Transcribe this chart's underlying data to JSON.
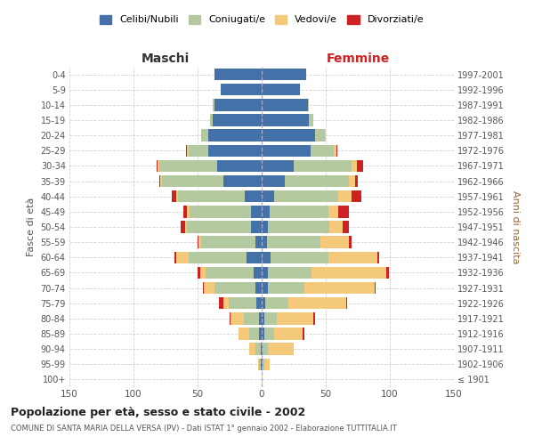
{
  "age_groups": [
    "100+",
    "95-99",
    "90-94",
    "85-89",
    "80-84",
    "75-79",
    "70-74",
    "65-69",
    "60-64",
    "55-59",
    "50-54",
    "45-49",
    "40-44",
    "35-39",
    "30-34",
    "25-29",
    "20-24",
    "15-19",
    "10-14",
    "5-9",
    "0-4"
  ],
  "birth_years": [
    "≤ 1901",
    "1902-1906",
    "1907-1911",
    "1912-1916",
    "1917-1921",
    "1922-1926",
    "1927-1931",
    "1932-1936",
    "1937-1941",
    "1942-1946",
    "1947-1951",
    "1952-1956",
    "1957-1961",
    "1962-1966",
    "1967-1971",
    "1972-1976",
    "1977-1981",
    "1982-1986",
    "1987-1991",
    "1992-1996",
    "1997-2001"
  ],
  "male": {
    "celibi": [
      0,
      1,
      1,
      2,
      2,
      4,
      5,
      6,
      12,
      5,
      8,
      8,
      13,
      30,
      35,
      42,
      42,
      38,
      37,
      32,
      37
    ],
    "coniugati": [
      0,
      1,
      4,
      8,
      12,
      22,
      32,
      38,
      45,
      42,
      50,
      48,
      52,
      48,
      45,
      15,
      5,
      2,
      1,
      0,
      0
    ],
    "vedovi": [
      0,
      1,
      5,
      8,
      10,
      4,
      8,
      4,
      10,
      2,
      2,
      2,
      2,
      1,
      1,
      1,
      0,
      0,
      0,
      0,
      0
    ],
    "divorziati": [
      0,
      0,
      0,
      0,
      1,
      3,
      1,
      2,
      1,
      1,
      3,
      3,
      3,
      1,
      1,
      1,
      0,
      0,
      0,
      0,
      0
    ]
  },
  "female": {
    "nubili": [
      0,
      1,
      1,
      2,
      2,
      3,
      5,
      5,
      7,
      4,
      5,
      6,
      10,
      18,
      25,
      38,
      42,
      37,
      36,
      30,
      35
    ],
    "coniugate": [
      0,
      1,
      4,
      8,
      10,
      18,
      28,
      34,
      45,
      42,
      48,
      46,
      50,
      50,
      45,
      18,
      7,
      3,
      1,
      0,
      0
    ],
    "vedove": [
      1,
      4,
      20,
      22,
      28,
      45,
      55,
      58,
      38,
      22,
      10,
      8,
      10,
      5,
      4,
      2,
      1,
      0,
      0,
      0,
      0
    ],
    "divorziate": [
      0,
      0,
      0,
      1,
      2,
      1,
      1,
      2,
      2,
      2,
      5,
      8,
      8,
      2,
      5,
      1,
      0,
      0,
      0,
      0,
      0
    ]
  },
  "colors": {
    "celibi": "#4472a8",
    "coniugati": "#b5c9a0",
    "vedovi": "#f5c97a",
    "divorziati": "#cc2222"
  },
  "title": "Popolazione per età, sesso e stato civile - 2002",
  "subtitle": "COMUNE DI SANTA MARIA DELLA VERSA (PV) - Dati ISTAT 1° gennaio 2002 - Elaborazione TUTTITALIA.IT",
  "xlabel_left": "Maschi",
  "xlabel_right": "Femmine",
  "ylabel_left": "Fasce di età",
  "ylabel_right": "Anni di nascita",
  "xlim": 150,
  "bg_color": "#ffffff",
  "grid_color": "#cccccc",
  "legend_labels": [
    "Celibi/Nubili",
    "Coniugati/e",
    "Vedovi/e",
    "Divorziati/e"
  ]
}
